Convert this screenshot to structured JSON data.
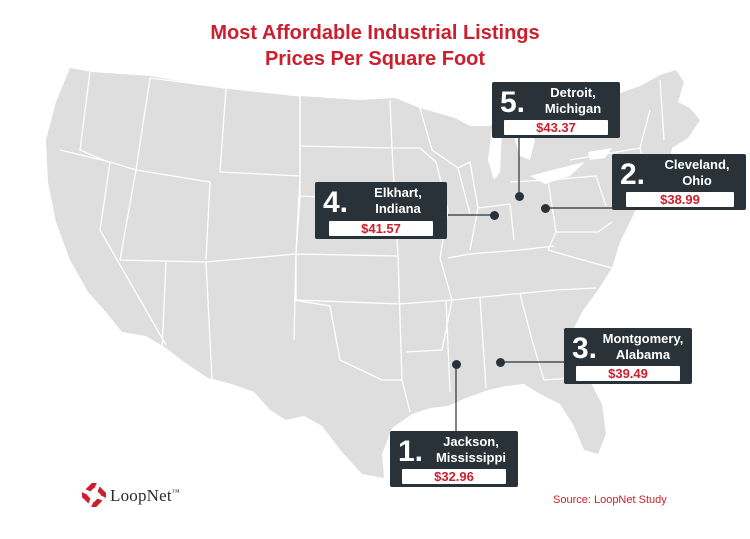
{
  "title": {
    "line1": "Most Affordable Industrial Listings",
    "line2": "Prices Per Square Foot"
  },
  "colors": {
    "accent": "#cc1f2d",
    "callout_bg": "#283238",
    "land": "#dedede",
    "borders": "#ffffff"
  },
  "listings": [
    {
      "rank": "1.",
      "city_line1": "Jackson,",
      "city_line2": "Mississippi",
      "price": "$32.96"
    },
    {
      "rank": "2.",
      "city_line1": "Cleveland,",
      "city_line2": "Ohio",
      "price": "$38.99"
    },
    {
      "rank": "3.",
      "city_line1": "Montgomery,",
      "city_line2": "Alabama",
      "price": "$39.49"
    },
    {
      "rank": "4.",
      "city_line1": "Elkhart,",
      "city_line2": "Indiana",
      "price": "$41.57"
    },
    {
      "rank": "5.",
      "city_line1": "Detroit,",
      "city_line2": "Michigan",
      "price": "$43.37"
    }
  ],
  "brand": {
    "name": "LoopNet",
    "trademark": "™"
  },
  "source": "Source: LoopNet Study"
}
